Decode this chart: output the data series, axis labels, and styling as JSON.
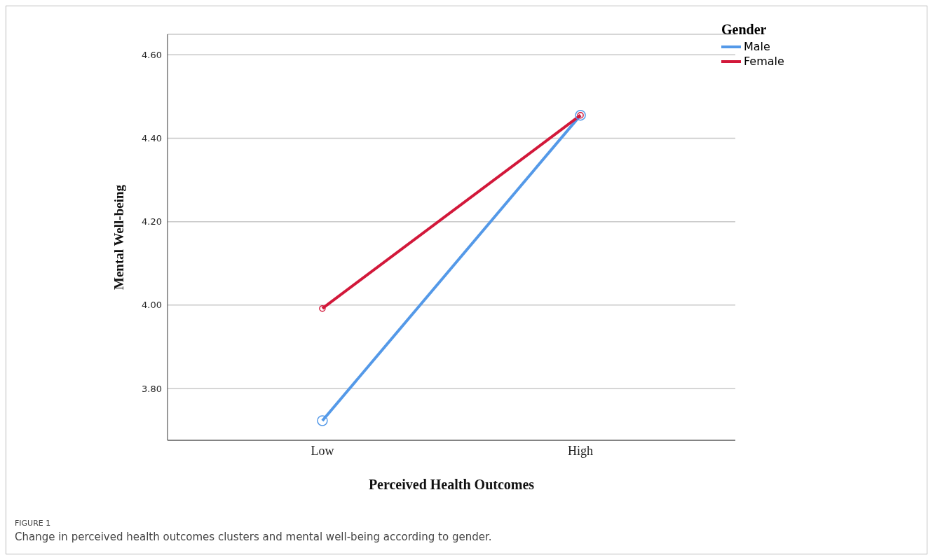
{
  "chart_data": {
    "type": "line",
    "xlabel": "Perceived Health Outcomes",
    "ylabel": "Mental Well-being",
    "legend_title": "Gender",
    "categories": [
      "Low",
      "High"
    ],
    "series": [
      {
        "name": "Male",
        "color": "#5499e8",
        "values": [
          3.723,
          4.455
        ]
      },
      {
        "name": "Female",
        "color": "#d2183a",
        "values": [
          3.992,
          4.455
        ]
      }
    ],
    "ylim": [
      3.676,
      4.649
    ],
    "yticks": [
      {
        "value": 3.8,
        "label": "3.80"
      },
      {
        "value": 4.0,
        "label": "4.00"
      },
      {
        "value": 4.2,
        "label": "4.20"
      },
      {
        "value": 4.4,
        "label": "4.40"
      },
      {
        "value": 4.6,
        "label": "4.60"
      }
    ],
    "grid": "y",
    "legend": "top right",
    "marker": "circle",
    "line_style": "solid",
    "annotations": [
      "FIGURE 1",
      "Change in perceived health outcomes clusters and mental well-being according to gender."
    ]
  }
}
